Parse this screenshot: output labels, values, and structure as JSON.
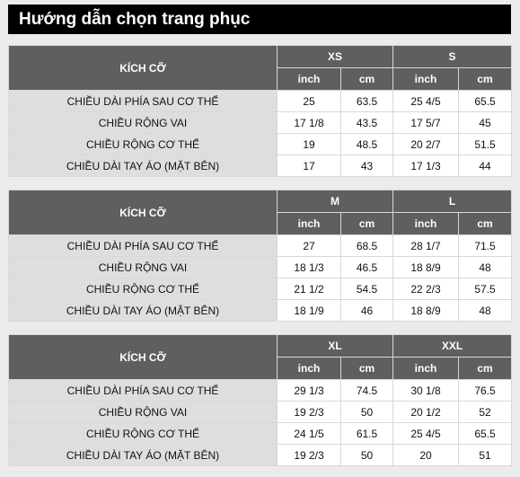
{
  "title": "Hướng dẫn chọn trang phục",
  "size_label": "KÍCH CỠ",
  "units": [
    "inch",
    "cm"
  ],
  "measurements": [
    "CHIỀU DÀI PHÍA SAU CƠ THỂ",
    "CHIỀU RỘNG VAI",
    "CHIỀU RỘNG CƠ THỂ",
    "CHIỀU DÀI TAY ÁO (MẶT BÊN)"
  ],
  "tables": [
    {
      "sizes": [
        "XS",
        "S"
      ],
      "rows": [
        [
          "25",
          "63.5",
          "25 4/5",
          "65.5"
        ],
        [
          "17 1/8",
          "43.5",
          "17 5/7",
          "45"
        ],
        [
          "19",
          "48.5",
          "20 2/7",
          "51.5"
        ],
        [
          "17",
          "43",
          "17 1/3",
          "44"
        ]
      ]
    },
    {
      "sizes": [
        "M",
        "L"
      ],
      "rows": [
        [
          "27",
          "68.5",
          "28 1/7",
          "71.5"
        ],
        [
          "18 1/3",
          "46.5",
          "18 8/9",
          "48"
        ],
        [
          "21 1/2",
          "54.5",
          "22 2/3",
          "57.5"
        ],
        [
          "18 1/9",
          "46",
          "18 8/9",
          "48"
        ]
      ]
    },
    {
      "sizes": [
        "XL",
        "XXL"
      ],
      "rows": [
        [
          "29 1/3",
          "74.5",
          "30 1/8",
          "76.5"
        ],
        [
          "19 2/3",
          "50",
          "20 1/2",
          "52"
        ],
        [
          "24 1/5",
          "61.5",
          "25 4/5",
          "65.5"
        ],
        [
          "19 2/3",
          "50",
          "20",
          "51"
        ]
      ]
    }
  ]
}
